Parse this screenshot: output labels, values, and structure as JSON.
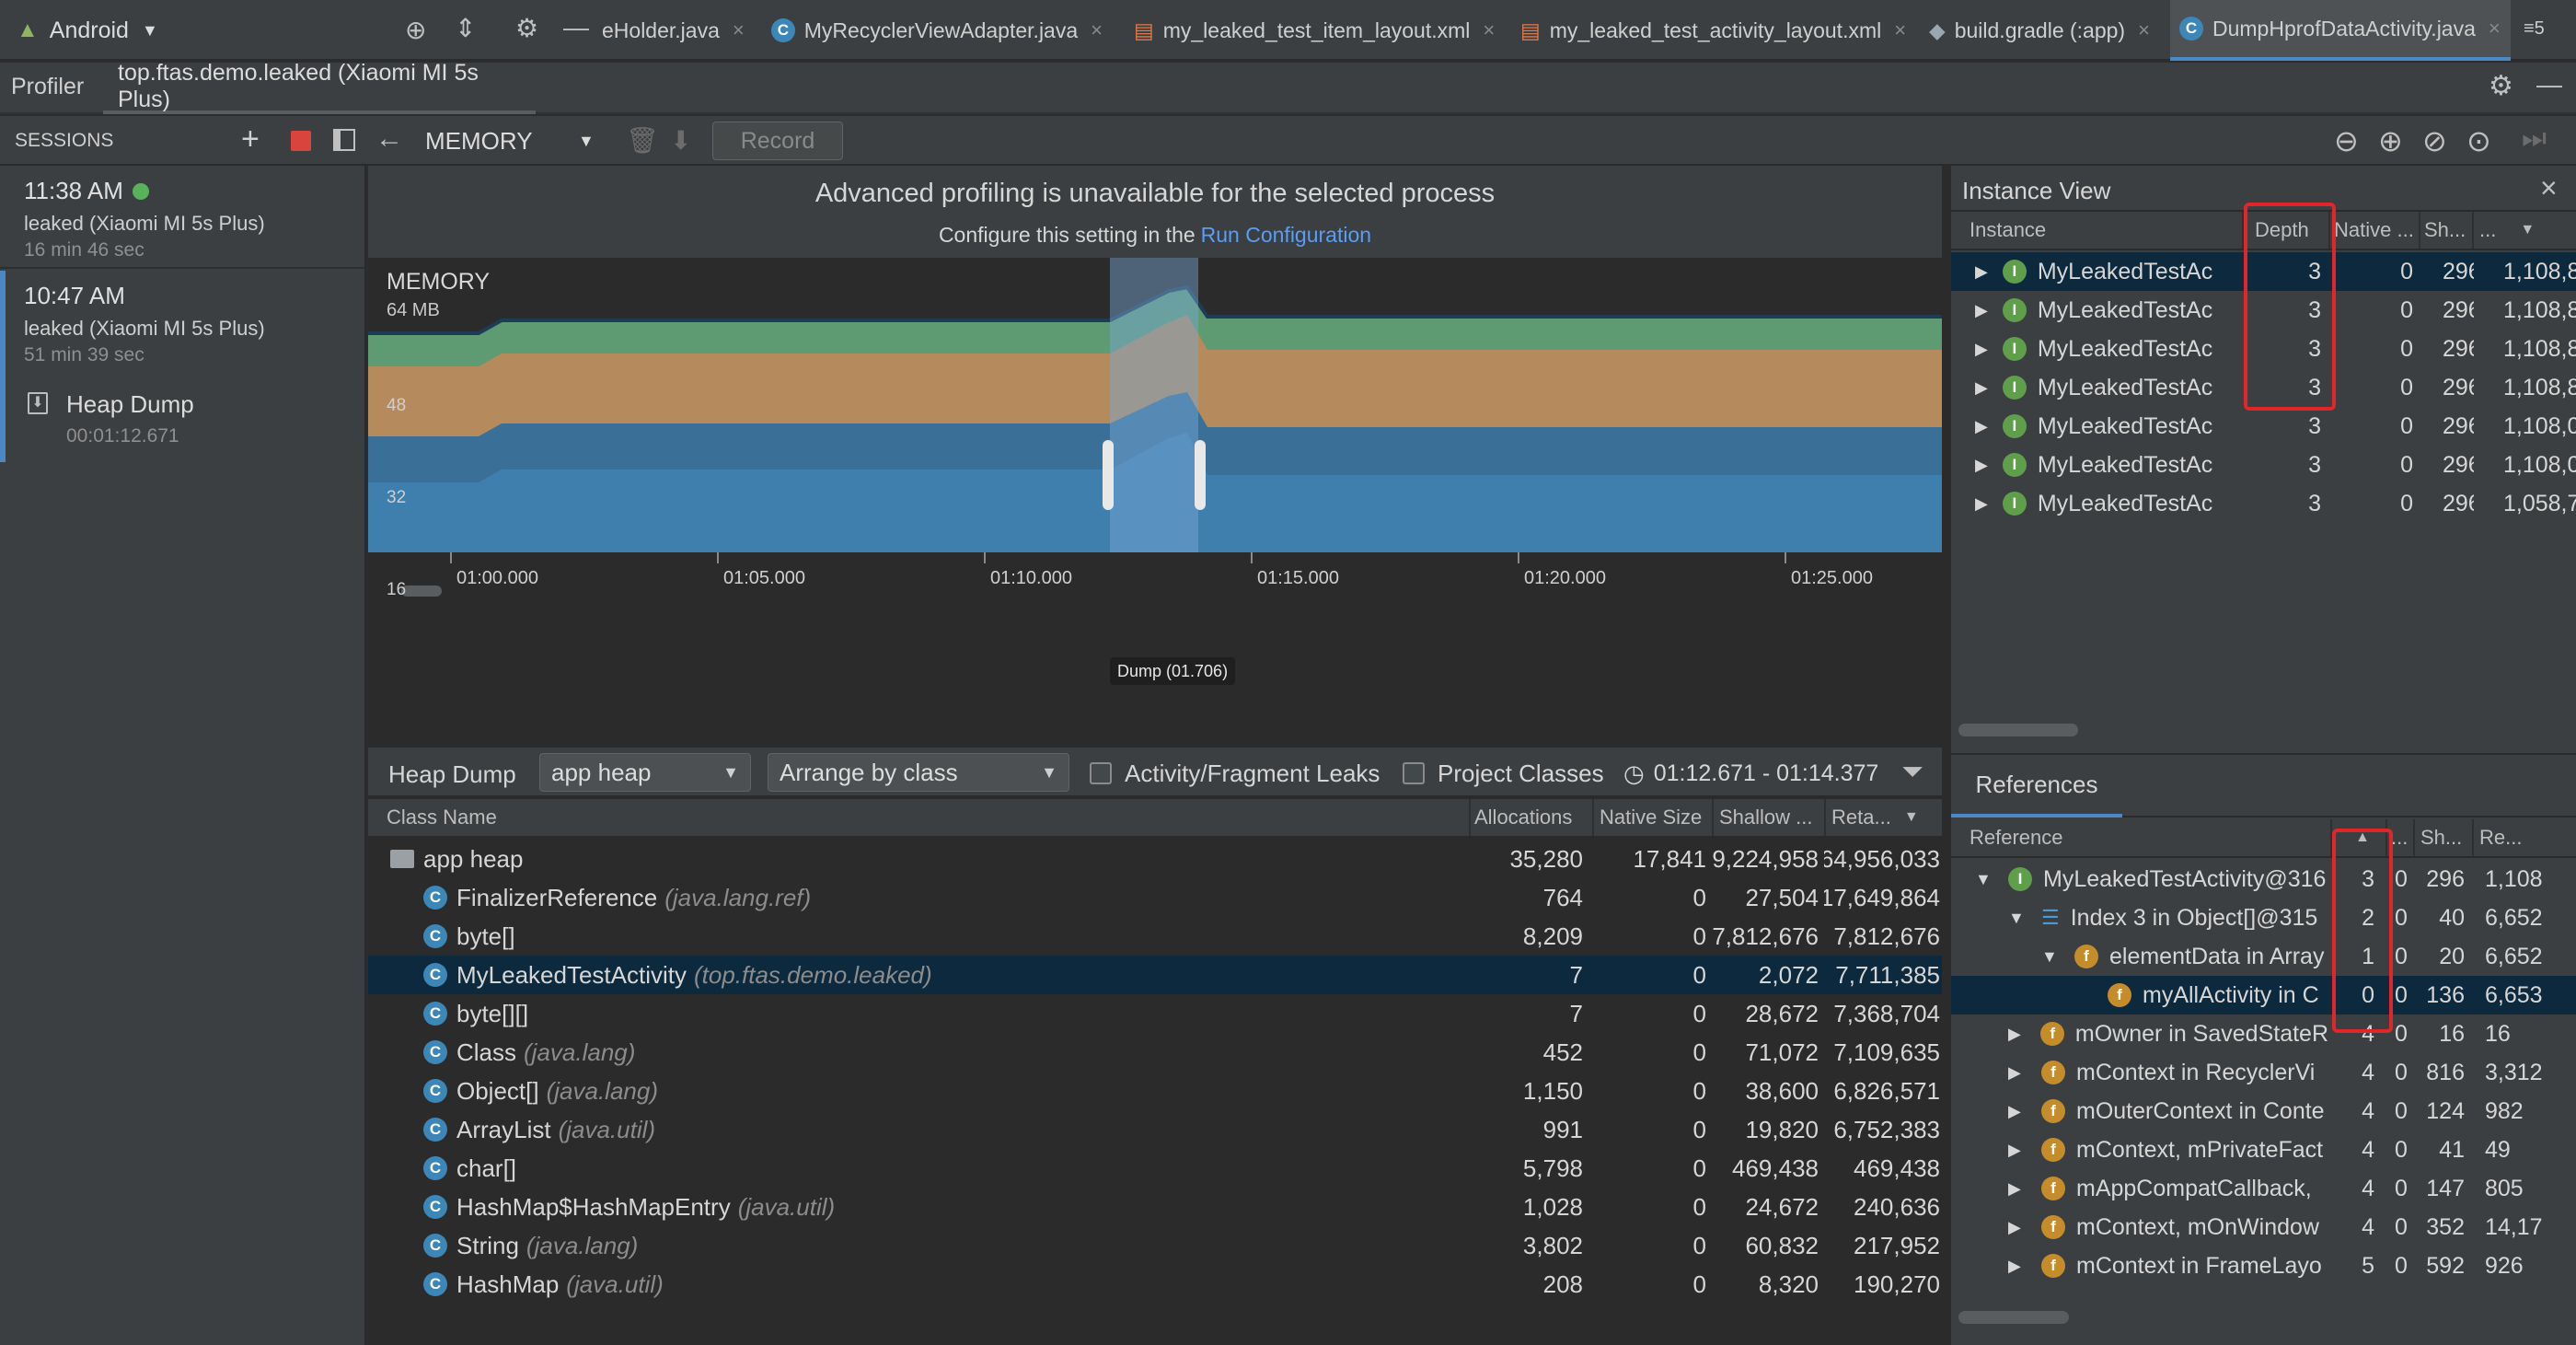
{
  "top_tabs": {
    "project": "Android",
    "tabs": [
      {
        "label": "eHolder.java"
      },
      {
        "label": "MyRecyclerViewAdapter.java"
      },
      {
        "label": "my_leaked_test_item_layout.xml"
      },
      {
        "label": "my_leaked_test_activity_layout.xml"
      },
      {
        "label": "build.gradle (:app)"
      },
      {
        "label": "DumpHprofDataActivity.java"
      }
    ],
    "overflow": "≡5"
  },
  "profiler_bar": {
    "title": "Profiler",
    "process_tab": "top.ftas.demo.leaked (Xiaomi MI 5s Plus)"
  },
  "toolbar": {
    "sessions_label": "SESSIONS",
    "memory_label": "MEMORY",
    "record_label": "Record"
  },
  "sessions": [
    {
      "time": "11:38 AM",
      "device": "leaked (Xiaomi MI 5s Plus)",
      "duration": "16 min 46 sec",
      "live": true
    },
    {
      "time": "10:47 AM",
      "device": "leaked (Xiaomi MI 5s Plus)",
      "duration": "51 min 39 sec",
      "live": false
    }
  ],
  "heap_dump_item": {
    "label": "Heap Dump",
    "time": "00:01:12.671"
  },
  "banner": {
    "title": "Advanced profiling is unavailable for the selected process",
    "subtitle": "Configure this setting in the",
    "link": "Run Configuration"
  },
  "chart_data": {
    "type": "area",
    "title": "MEMORY",
    "y_unit_label": "64 MB",
    "yticks": [
      "48",
      "32",
      "16"
    ],
    "xticks": [
      "01:00.000",
      "01:05.000",
      "01:10.000",
      "01:15.000",
      "01:20.000",
      "01:25.000"
    ],
    "series": [
      {
        "name": "",
        "color": "#3f7fae"
      },
      {
        "name": "",
        "color": "#3a6f98"
      },
      {
        "name": "",
        "color": "#b58a5c"
      },
      {
        "name": "",
        "color": "#5e9a72"
      }
    ],
    "dump_label": "Dump (01.706)"
  },
  "heap_toolbar": {
    "label": "Heap Dump",
    "heap_select": "app heap",
    "arrange_select": "Arrange by class",
    "leaks_checkbox": "Activity/Fragment Leaks",
    "project_checkbox": "Project Classes",
    "range": "01:12.671 - 01:14.377"
  },
  "class_table": {
    "headers": {
      "name": "Class Name",
      "alloc": "Allocations",
      "native": "Native Size",
      "shallow": "Shallow ...",
      "retained": "Reta..."
    },
    "root": {
      "name": "app heap",
      "alloc": "35,280",
      "native": "17,841",
      "shallow": "9,224,958",
      "retained": "64,956,033"
    },
    "rows": [
      {
        "name": "FinalizerReference",
        "pkg": "(java.lang.ref)",
        "alloc": "764",
        "native": "0",
        "shallow": "27,504",
        "retained": "17,649,864"
      },
      {
        "name": "byte[]",
        "pkg": "",
        "alloc": "8,209",
        "native": "0",
        "shallow": "7,812,676",
        "retained": "7,812,676"
      },
      {
        "name": "MyLeakedTestActivity",
        "pkg": "(top.ftas.demo.leaked)",
        "alloc": "7",
        "native": "0",
        "shallow": "2,072",
        "retained": "7,711,385",
        "selected": true
      },
      {
        "name": "byte[][]",
        "pkg": "",
        "alloc": "7",
        "native": "0",
        "shallow": "28,672",
        "retained": "7,368,704"
      },
      {
        "name": "Class",
        "pkg": "(java.lang)",
        "alloc": "452",
        "native": "0",
        "shallow": "71,072",
        "retained": "7,109,635"
      },
      {
        "name": "Object[]",
        "pkg": "(java.lang)",
        "alloc": "1,150",
        "native": "0",
        "shallow": "38,600",
        "retained": "6,826,571"
      },
      {
        "name": "ArrayList",
        "pkg": "(java.util)",
        "alloc": "991",
        "native": "0",
        "shallow": "19,820",
        "retained": "6,752,383"
      },
      {
        "name": "char[]",
        "pkg": "",
        "alloc": "5,798",
        "native": "0",
        "shallow": "469,438",
        "retained": "469,438"
      },
      {
        "name": "HashMap$HashMapEntry",
        "pkg": "(java.util)",
        "alloc": "1,028",
        "native": "0",
        "shallow": "24,672",
        "retained": "240,636"
      },
      {
        "name": "String",
        "pkg": "(java.lang)",
        "alloc": "3,802",
        "native": "0",
        "shallow": "60,832",
        "retained": "217,952"
      },
      {
        "name": "HashMap",
        "pkg": "(java.util)",
        "alloc": "208",
        "native": "0",
        "shallow": "8,320",
        "retained": "190,270"
      }
    ]
  },
  "instance_view": {
    "title": "Instance View",
    "headers": {
      "instance": "Instance",
      "depth": "Depth",
      "native": "Native ...",
      "shallow": "Sh...",
      "retained": "..."
    },
    "rows": [
      {
        "name": "MyLeakedTestAc",
        "depth": "3",
        "native": "0",
        "shallow": "296",
        "retained": "1,108,8",
        "selected": true
      },
      {
        "name": "MyLeakedTestAc",
        "depth": "3",
        "native": "0",
        "shallow": "296",
        "retained": "1,108,8"
      },
      {
        "name": "MyLeakedTestAc",
        "depth": "3",
        "native": "0",
        "shallow": "296",
        "retained": "1,108,8"
      },
      {
        "name": "MyLeakedTestAc",
        "depth": "3",
        "native": "0",
        "shallow": "296",
        "retained": "1,108,8"
      },
      {
        "name": "MyLeakedTestAc",
        "depth": "3",
        "native": "0",
        "shallow": "296",
        "retained": "1,108,0"
      },
      {
        "name": "MyLeakedTestAc",
        "depth": "3",
        "native": "0",
        "shallow": "296",
        "retained": "1,108,0"
      },
      {
        "name": "MyLeakedTestAc",
        "depth": "3",
        "native": "0",
        "shallow": "296",
        "retained": "1,058,7"
      }
    ]
  },
  "references": {
    "tab": "References",
    "headers": {
      "reference": "Reference",
      "depth": "",
      "dots": "...",
      "native": "Sh...",
      "retained": "Re..."
    },
    "rows": [
      {
        "indent": 0,
        "expander": "▼",
        "icon": "I",
        "name": "MyLeakedTestActivity@316",
        "depth": "3",
        "native": "0",
        "shallow": "296",
        "retained": "1,108"
      },
      {
        "indent": 1,
        "expander": "▼",
        "icon": "L",
        "name": "Index 3 in Object[]@315",
        "depth": "2",
        "native": "0",
        "shallow": "40",
        "retained": "6,652"
      },
      {
        "indent": 2,
        "expander": "▼",
        "icon": "f",
        "name": "elementData in Array",
        "depth": "1",
        "native": "0",
        "shallow": "20",
        "retained": "6,652"
      },
      {
        "indent": 3,
        "expander": "",
        "icon": "f",
        "name": "myAllActivity in C",
        "depth": "0",
        "native": "0",
        "shallow": "136",
        "retained": "6,653",
        "selected": true
      },
      {
        "indent": 1,
        "expander": "▶",
        "icon": "f",
        "name": "mOwner in SavedStateR",
        "depth": "4",
        "native": "0",
        "shallow": "16",
        "retained": "16"
      },
      {
        "indent": 1,
        "expander": "▶",
        "icon": "f",
        "name": "mContext in RecyclerVi",
        "depth": "4",
        "native": "0",
        "shallow": "816",
        "retained": "3,312"
      },
      {
        "indent": 1,
        "expander": "▶",
        "icon": "f",
        "name": "mOuterContext in Conte",
        "depth": "4",
        "native": "0",
        "shallow": "124",
        "retained": "982"
      },
      {
        "indent": 1,
        "expander": "▶",
        "icon": "f",
        "name": "mContext, mPrivateFact",
        "depth": "4",
        "native": "0",
        "shallow": "41",
        "retained": "49"
      },
      {
        "indent": 1,
        "expander": "▶",
        "icon": "f",
        "name": "mAppCompatCallback,",
        "depth": "4",
        "native": "0",
        "shallow": "147",
        "retained": "805"
      },
      {
        "indent": 1,
        "expander": "▶",
        "icon": "f",
        "name": "mContext, mOnWindow",
        "depth": "4",
        "native": "0",
        "shallow": "352",
        "retained": "14,17"
      },
      {
        "indent": 1,
        "expander": "▶",
        "icon": "f",
        "name": "mContext in FrameLayo",
        "depth": "5",
        "native": "0",
        "shallow": "592",
        "retained": "926"
      }
    ]
  }
}
